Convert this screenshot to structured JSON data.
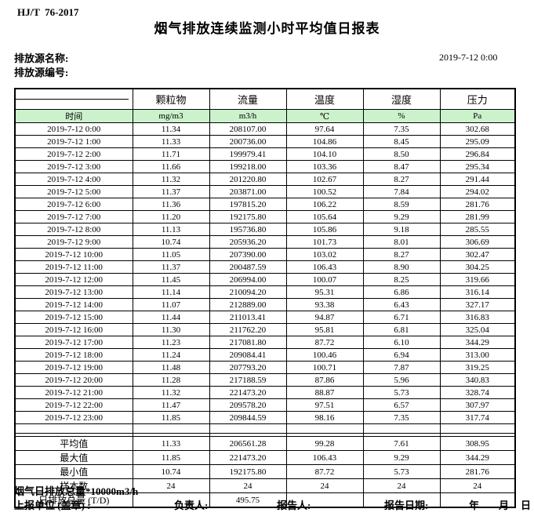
{
  "page": {
    "doc_code": "HJ/T  76-2017",
    "title": "烟气排放连续监测小时平均值日报表",
    "source_name_label": "排放源名称:",
    "source_code_label": "排放源编号:",
    "report_datetime": "2019-7-12 0:00"
  },
  "colors": {
    "header_green": "#ccf2cc",
    "border": "#000000"
  },
  "table": {
    "time_header": "时间",
    "columns": [
      "颗粒物",
      "流量",
      "温度",
      "湿度",
      "压力"
    ],
    "units": [
      "mg/m3",
      "m3/h",
      "℃",
      "%",
      "Pa"
    ],
    "rows": [
      {
        "time": "2019-7-12 0:00",
        "values": [
          "11.34",
          "208107.00",
          "97.64",
          "7.35",
          "302.68"
        ]
      },
      {
        "time": "2019-7-12 1:00",
        "values": [
          "11.33",
          "200736.00",
          "104.86",
          "8.45",
          "295.09"
        ]
      },
      {
        "time": "2019-7-12 2:00",
        "values": [
          "11.71",
          "199979.41",
          "104.10",
          "8.50",
          "296.84"
        ]
      },
      {
        "time": "2019-7-12 3:00",
        "values": [
          "11.66",
          "199218.00",
          "103.36",
          "8.47",
          "295.34"
        ]
      },
      {
        "time": "2019-7-12 4:00",
        "values": [
          "11.32",
          "201220.80",
          "102.67",
          "8.27",
          "291.44"
        ]
      },
      {
        "time": "2019-7-12 5:00",
        "values": [
          "11.37",
          "203871.00",
          "100.52",
          "7.84",
          "294.02"
        ]
      },
      {
        "time": "2019-7-12 6:00",
        "values": [
          "11.36",
          "197815.20",
          "106.22",
          "8.59",
          "281.76"
        ]
      },
      {
        "time": "2019-7-12 7:00",
        "values": [
          "11.20",
          "192175.80",
          "105.64",
          "9.29",
          "281.99"
        ]
      },
      {
        "time": "2019-7-12 8:00",
        "values": [
          "11.13",
          "195736.80",
          "105.86",
          "9.18",
          "285.55"
        ]
      },
      {
        "time": "2019-7-12 9:00",
        "values": [
          "10.74",
          "205936.20",
          "101.73",
          "8.01",
          "306.69"
        ]
      },
      {
        "time": "2019-7-12 10:00",
        "values": [
          "11.05",
          "207390.00",
          "103.02",
          "8.27",
          "302.47"
        ]
      },
      {
        "time": "2019-7-12 11:00",
        "values": [
          "11.37",
          "200487.59",
          "106.43",
          "8.90",
          "304.25"
        ]
      },
      {
        "time": "2019-7-12 12:00",
        "values": [
          "11.45",
          "206994.00",
          "100.07",
          "8.25",
          "319.66"
        ]
      },
      {
        "time": "2019-7-12 13:00",
        "values": [
          "11.14",
          "210094.20",
          "95.31",
          "6.86",
          "316.14"
        ]
      },
      {
        "time": "2019-7-12 14:00",
        "values": [
          "11.07",
          "212889.00",
          "93.38",
          "6.43",
          "327.17"
        ]
      },
      {
        "time": "2019-7-12 15:00",
        "values": [
          "11.44",
          "211013.41",
          "94.87",
          "6.71",
          "316.83"
        ]
      },
      {
        "time": "2019-7-12 16:00",
        "values": [
          "11.30",
          "211762.20",
          "95.81",
          "6.81",
          "325.04"
        ]
      },
      {
        "time": "2019-7-12 17:00",
        "values": [
          "11.23",
          "217081.80",
          "87.72",
          "6.10",
          "344.29"
        ]
      },
      {
        "time": "2019-7-12 18:00",
        "values": [
          "11.24",
          "209084.41",
          "100.46",
          "6.94",
          "313.00"
        ]
      },
      {
        "time": "2019-7-12 19:00",
        "values": [
          "11.48",
          "207793.20",
          "100.71",
          "7.87",
          "319.25"
        ]
      },
      {
        "time": "2019-7-12 20:00",
        "values": [
          "11.28",
          "217188.59",
          "87.86",
          "5.96",
          "340.83"
        ]
      },
      {
        "time": "2019-7-12 21:00",
        "values": [
          "11.32",
          "221473.20",
          "88.87",
          "5.73",
          "328.74"
        ]
      },
      {
        "time": "2019-7-12 22:00",
        "values": [
          "11.47",
          "209578.20",
          "97.51",
          "6.57",
          "307.97"
        ]
      },
      {
        "time": "2019-7-12 23:00",
        "values": [
          "11.85",
          "209844.59",
          "98.16",
          "7.35",
          "317.74"
        ]
      }
    ],
    "summary": [
      {
        "label": "平均值",
        "values": [
          "11.33",
          "206561.28",
          "99.28",
          "7.61",
          "308.95"
        ]
      },
      {
        "label": "最大值",
        "values": [
          "11.85",
          "221473.20",
          "106.43",
          "9.29",
          "344.29"
        ]
      },
      {
        "label": "最小值",
        "values": [
          "10.74",
          "192175.80",
          "87.72",
          "5.73",
          "281.76"
        ]
      },
      {
        "label": "样本数",
        "values": [
          "24",
          "24",
          "24",
          "24",
          "24"
        ]
      },
      {
        "label": "日排放总量 (T/D)",
        "values": [
          "",
          "495.75",
          "",
          "",
          ""
        ]
      }
    ]
  },
  "footer": {
    "note": "烟气日排放总量*10000m3/h",
    "report_unit_label": "上报单位 (盖章) :",
    "responsible_label": "负责人:",
    "reporter_label": "报告人:",
    "report_date_label": "报告日期:",
    "year_label": "年",
    "month_label": "月",
    "day_label": "日"
  }
}
